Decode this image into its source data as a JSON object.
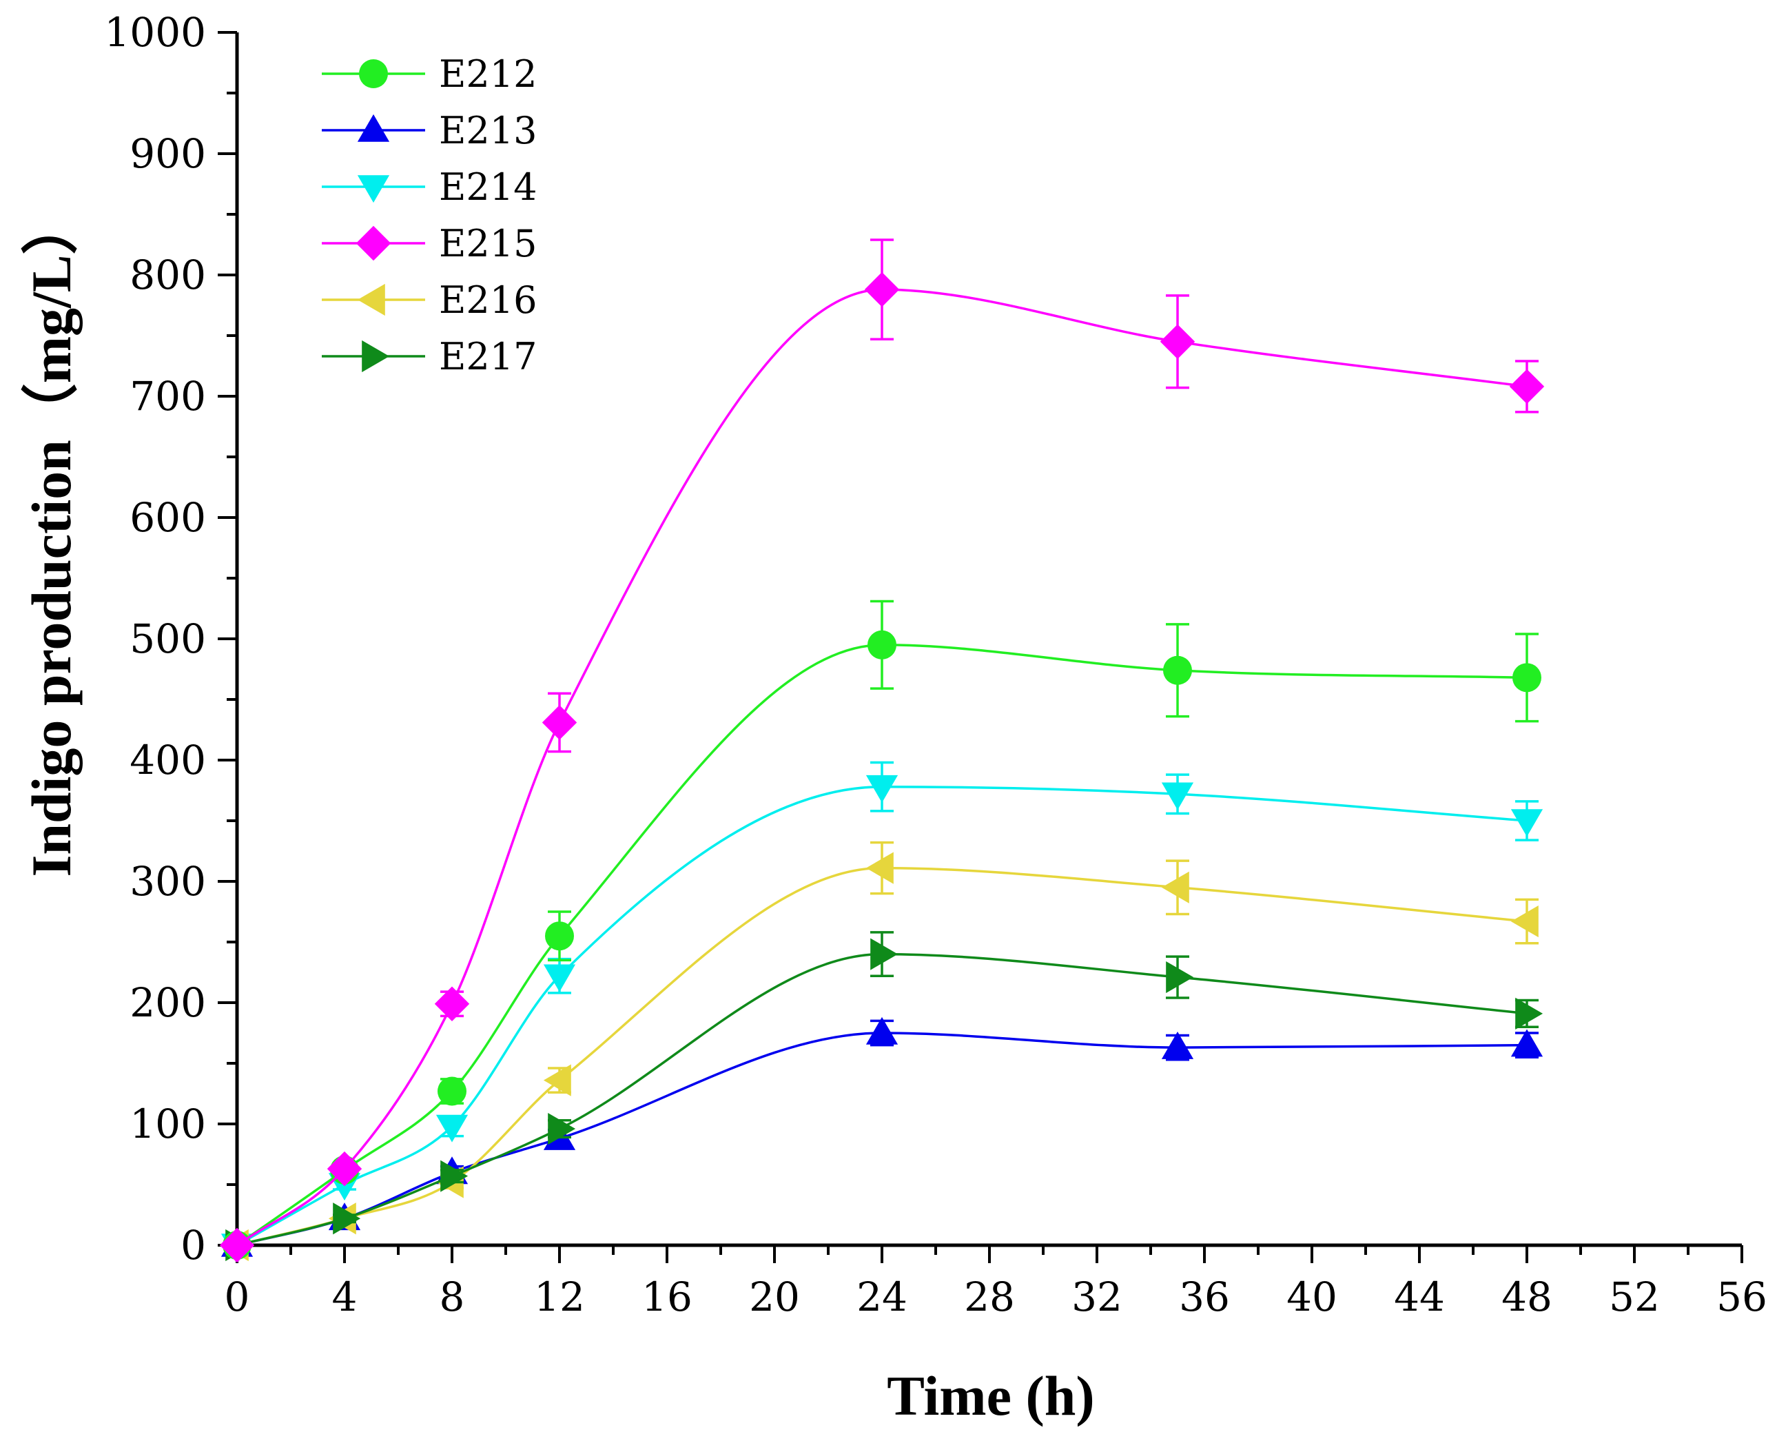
{
  "chart_data": {
    "type": "line",
    "title": "",
    "xlabel": "Time (h)",
    "ylabel": "Indigo production（mg/L）",
    "xlim": [
      0,
      56
    ],
    "ylim": [
      0,
      1000
    ],
    "xticks": [
      0,
      4,
      8,
      12,
      16,
      20,
      24,
      28,
      32,
      36,
      40,
      44,
      48,
      52,
      56
    ],
    "yticks": [
      0,
      100,
      200,
      300,
      400,
      500,
      600,
      700,
      800,
      900,
      1000
    ],
    "x": [
      0,
      4,
      8,
      12,
      24,
      35,
      48
    ],
    "legend_position": "top-left",
    "grid": false,
    "series": [
      {
        "name": "E212",
        "color": "#22ee22",
        "marker": "circle",
        "values": [
          0,
          62,
          127,
          255,
          495,
          474,
          468
        ],
        "errors": [
          0,
          4,
          10,
          20,
          36,
          38,
          36
        ]
      },
      {
        "name": "E213",
        "color": "#0000ee",
        "marker": "triangle-up",
        "values": [
          0,
          22,
          60,
          88,
          175,
          163,
          165
        ],
        "errors": [
          0,
          3,
          5,
          7,
          10,
          10,
          10
        ]
      },
      {
        "name": "E214",
        "color": "#00eeee",
        "marker": "triangle-down",
        "values": [
          0,
          50,
          98,
          222,
          378,
          372,
          350
        ],
        "errors": [
          0,
          4,
          8,
          14,
          20,
          16,
          16
        ]
      },
      {
        "name": "E215",
        "color": "#ff00ff",
        "marker": "diamond",
        "values": [
          0,
          63,
          199,
          431,
          788,
          745,
          708
        ],
        "errors": [
          0,
          4,
          10,
          24,
          41,
          38,
          21
        ]
      },
      {
        "name": "E216",
        "color": "#e6d63c",
        "marker": "triangle-left",
        "values": [
          0,
          22,
          52,
          136,
          311,
          295,
          267
        ],
        "errors": [
          0,
          3,
          5,
          10,
          21,
          22,
          18
        ]
      },
      {
        "name": "E217",
        "color": "#0f8a1a",
        "marker": "triangle-right",
        "values": [
          0,
          22,
          57,
          96,
          240,
          221,
          191
        ],
        "errors": [
          0,
          3,
          5,
          7,
          18,
          17,
          11
        ]
      }
    ]
  }
}
